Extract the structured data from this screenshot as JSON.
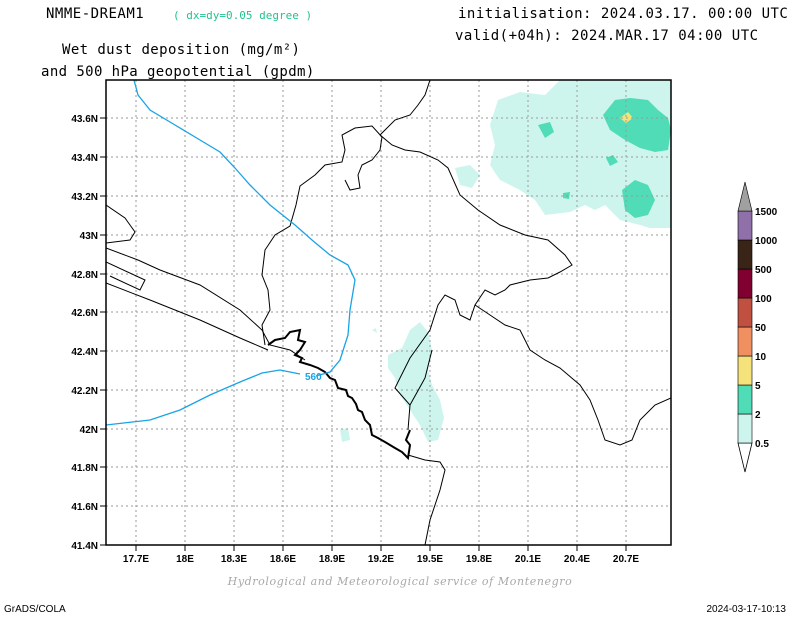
{
  "header": {
    "model": "NMME-DREAM1",
    "resolution": "( dx=dy=0.05 degree )",
    "initialisation": "initialisation: 2024.03.17. 00:00 UTC",
    "valid": "valid(+04h): 2024.MAR.17 04:00 UTC",
    "title_line1": "Wet dust deposition (mg/m²)",
    "title_line2": "and 500 hPa geopotential (gpdm)"
  },
  "map": {
    "lat_labels": [
      "43.6N",
      "43.4N",
      "43.2N",
      "43N",
      "42.8N",
      "42.6N",
      "42.4N",
      "42.2N",
      "42N",
      "41.8N",
      "41.6N",
      "41.4N"
    ],
    "lon_labels": [
      "17.7E",
      "18E",
      "18.3E",
      "18.6E",
      "18.9E",
      "19.2E",
      "19.5E",
      "19.8E",
      "20.1E",
      "20.4E",
      "20.7E"
    ],
    "contour_label": "560",
    "contour_color": "#1aa3e6",
    "border_color": "#000000"
  },
  "legend": {
    "levels": [
      "0.5",
      "2",
      "5",
      "10",
      "50",
      "100",
      "500",
      "1000",
      "1500"
    ],
    "colors": [
      "#cdf5ee",
      "#4fdcb6",
      "#f6e27a",
      "#f09060",
      "#c05040",
      "#800030",
      "#3a2418",
      "#9070a8",
      "#a0a0a0"
    ]
  },
  "footer": {
    "credit": "Hydrological and Meteorological service of Montenegro",
    "software": "GrADS/COLA",
    "timestamp": "2024-03-17-10:13"
  }
}
